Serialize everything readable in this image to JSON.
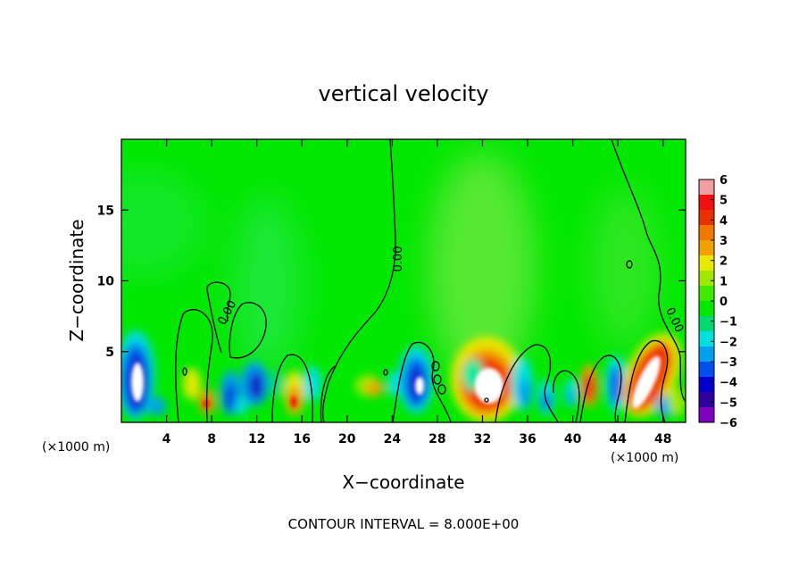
{
  "chart_data": {
    "type": "heatmap",
    "title": "vertical velocity",
    "xlabel": "X−coordinate",
    "ylabel": "Z−coordinate",
    "x_unit": "(×1000 m)",
    "x_unit_right": "(×1000 m)",
    "xlim": [
      0,
      50
    ],
    "ylim": [
      0,
      20
    ],
    "x_ticks": [
      4,
      8,
      12,
      16,
      20,
      24,
      28,
      32,
      36,
      40,
      44,
      48
    ],
    "y_ticks": [
      5,
      10,
      15
    ],
    "colorbar": {
      "min": -6,
      "max": 6,
      "labels": [
        "6",
        "5",
        "4",
        "3",
        "2",
        "1",
        "0",
        "−1",
        "−2",
        "−3",
        "−4",
        "−5",
        "−6"
      ],
      "colors": [
        "#f0a0a0",
        "#f01010",
        "#e83000",
        "#f07800",
        "#f0a000",
        "#e8e800",
        "#a0e800",
        "#40e800",
        "#00e800",
        "#00d870",
        "#00e0e0",
        "#00a0f0",
        "#0050f0",
        "#0000d0",
        "#3000a0",
        "#8000c0"
      ]
    },
    "contour_label": "0.00",
    "footer": "CONTOUR INTERVAL = 8.000E+00",
    "features": [
      {
        "x": 0.8,
        "z": 2.8,
        "value": -6
      },
      {
        "x": 6.5,
        "z": 2.5,
        "value": 2
      },
      {
        "x": 7.5,
        "z": 1.5,
        "value": 3
      },
      {
        "x": 9.5,
        "z": 2.0,
        "value": -4
      },
      {
        "x": 12.0,
        "z": 2.5,
        "value": -4
      },
      {
        "x": 15.5,
        "z": 1.8,
        "value": 3
      },
      {
        "x": 23.0,
        "z": 2.4,
        "value": 2
      },
      {
        "x": 26.0,
        "z": 3.0,
        "value": -5
      },
      {
        "x": 32.2,
        "z": 2.5,
        "value": 6
      },
      {
        "x": 35.0,
        "z": 2.5,
        "value": -3
      },
      {
        "x": 41.5,
        "z": 2.6,
        "value": 4
      },
      {
        "x": 46.0,
        "z": 3.3,
        "value": 6
      },
      {
        "x": 47.6,
        "z": 1.0,
        "value": -3
      },
      {
        "x": 32.0,
        "z": 9.0,
        "value": 1
      }
    ]
  }
}
